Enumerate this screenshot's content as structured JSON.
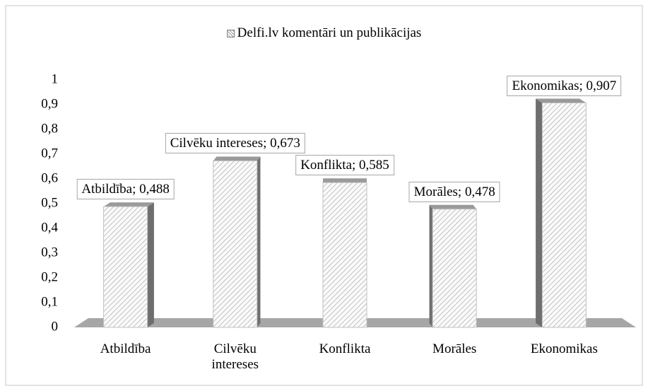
{
  "chart_data": {
    "type": "bar3d",
    "categories": [
      "Atbildība",
      "Cilvēku intereses",
      "Konflikta",
      "Morāles",
      "Ekonomikas"
    ],
    "series": [
      {
        "name": "Delfi.lv komentāri un publikācijas",
        "color": "#d9d9d9",
        "values": [
          0.488,
          0.673,
          0.585,
          0.478,
          0.907
        ],
        "value_labels": [
          "Atbildība; 0,488",
          "Cilvēku intereses; 0,673",
          "Konflikta; 0,585",
          "Morāles; 0,478",
          "Ekonomikas; 0,907"
        ]
      }
    ],
    "ylim": [
      0,
      1
    ],
    "yticks": [
      0,
      {
        "value": 0.1,
        "label": "0,1"
      },
      {
        "value": 0.2,
        "label": "0,2"
      },
      {
        "value": 0.3,
        "label": "0,3"
      },
      {
        "value": 0.4,
        "label": "0,4"
      },
      {
        "value": 0.5,
        "label": "0,5"
      },
      {
        "value": 0.6,
        "label": "0,6"
      },
      {
        "value": 0.7,
        "label": "0,7"
      },
      {
        "value": 0.8,
        "label": "0,8"
      },
      {
        "value": 0.9,
        "label": "0,9"
      },
      1
    ],
    "legend": "top",
    "grid": false
  }
}
